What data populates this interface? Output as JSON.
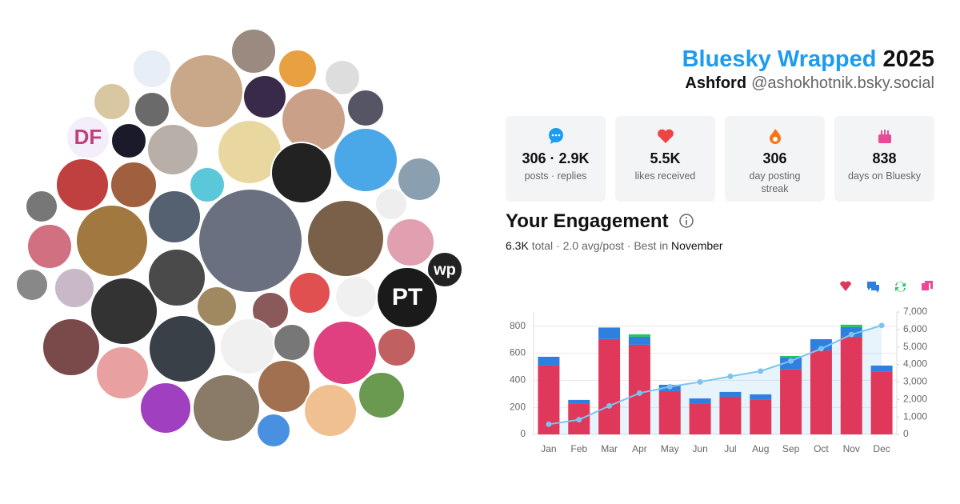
{
  "header": {
    "title": "Bluesky Wrapped",
    "year": "2025",
    "name": "Ashford",
    "handle": "@ashokhotnik.bsky.social"
  },
  "avatar_texts": [
    "DF",
    "PT",
    "wp"
  ],
  "stats": [
    {
      "value": "306 · 2.9K",
      "label": "posts · replies"
    },
    {
      "value": "5.5K",
      "label": "likes received"
    },
    {
      "value": "306",
      "label": "day posting streak"
    },
    {
      "value": "838",
      "label": "days on Bluesky"
    }
  ],
  "engagement": {
    "heading": "Your Engagement",
    "total": "6.3K",
    "summary": "total · 2.0 avg/post · Best in",
    "best": "November"
  },
  "chart_data": {
    "type": "bar",
    "stacked": true,
    "categories": [
      "Jan",
      "Feb",
      "Mar",
      "Apr",
      "May",
      "Jun",
      "Jul",
      "Aug",
      "Sep",
      "Oct",
      "Nov",
      "Dec"
    ],
    "series": [
      {
        "color": "#e0385a",
        "values": [
          509,
          225,
          705,
          663,
          320,
          225,
          278,
          255,
          480,
          621,
          722,
          462
        ]
      },
      {
        "color": "#2f7fe0",
        "values": [
          65,
          30,
          82,
          59,
          47,
          41,
          36,
          41,
          88,
          83,
          71,
          47
        ]
      },
      {
        "color": "#22c55e",
        "values": [
          0,
          0,
          4,
          18,
          0,
          0,
          0,
          0,
          12,
          0,
          18,
          0
        ]
      },
      {
        "color": "#ec4899",
        "values": [
          0,
          0,
          0,
          0,
          0,
          0,
          0,
          0,
          0,
          0,
          0,
          0
        ]
      },
      {
        "type": "line",
        "axis": "y2",
        "color": "#7cc4ef",
        "values": [
          580,
          840,
          1630,
          2360,
          2730,
          3000,
          3320,
          3620,
          4200,
          4900,
          5710,
          6230
        ]
      }
    ],
    "ylim": [
      0,
      905
    ],
    "yticks": [
      0,
      200,
      400,
      600,
      800
    ],
    "y2lim": [
      0,
      7000
    ],
    "y2ticks": [
      0,
      {
        "value": 1000,
        "label": "1,000"
      },
      {
        "value": 2000,
        "label": "2,000"
      },
      {
        "value": 3000,
        "label": "3,000"
      },
      {
        "value": 4000,
        "label": "4,000"
      },
      {
        "value": 5000,
        "label": "5,000"
      },
      {
        "value": 6000,
        "label": "6,000"
      },
      {
        "value": 7000,
        "label": "7,000"
      }
    ],
    "grid": true
  }
}
